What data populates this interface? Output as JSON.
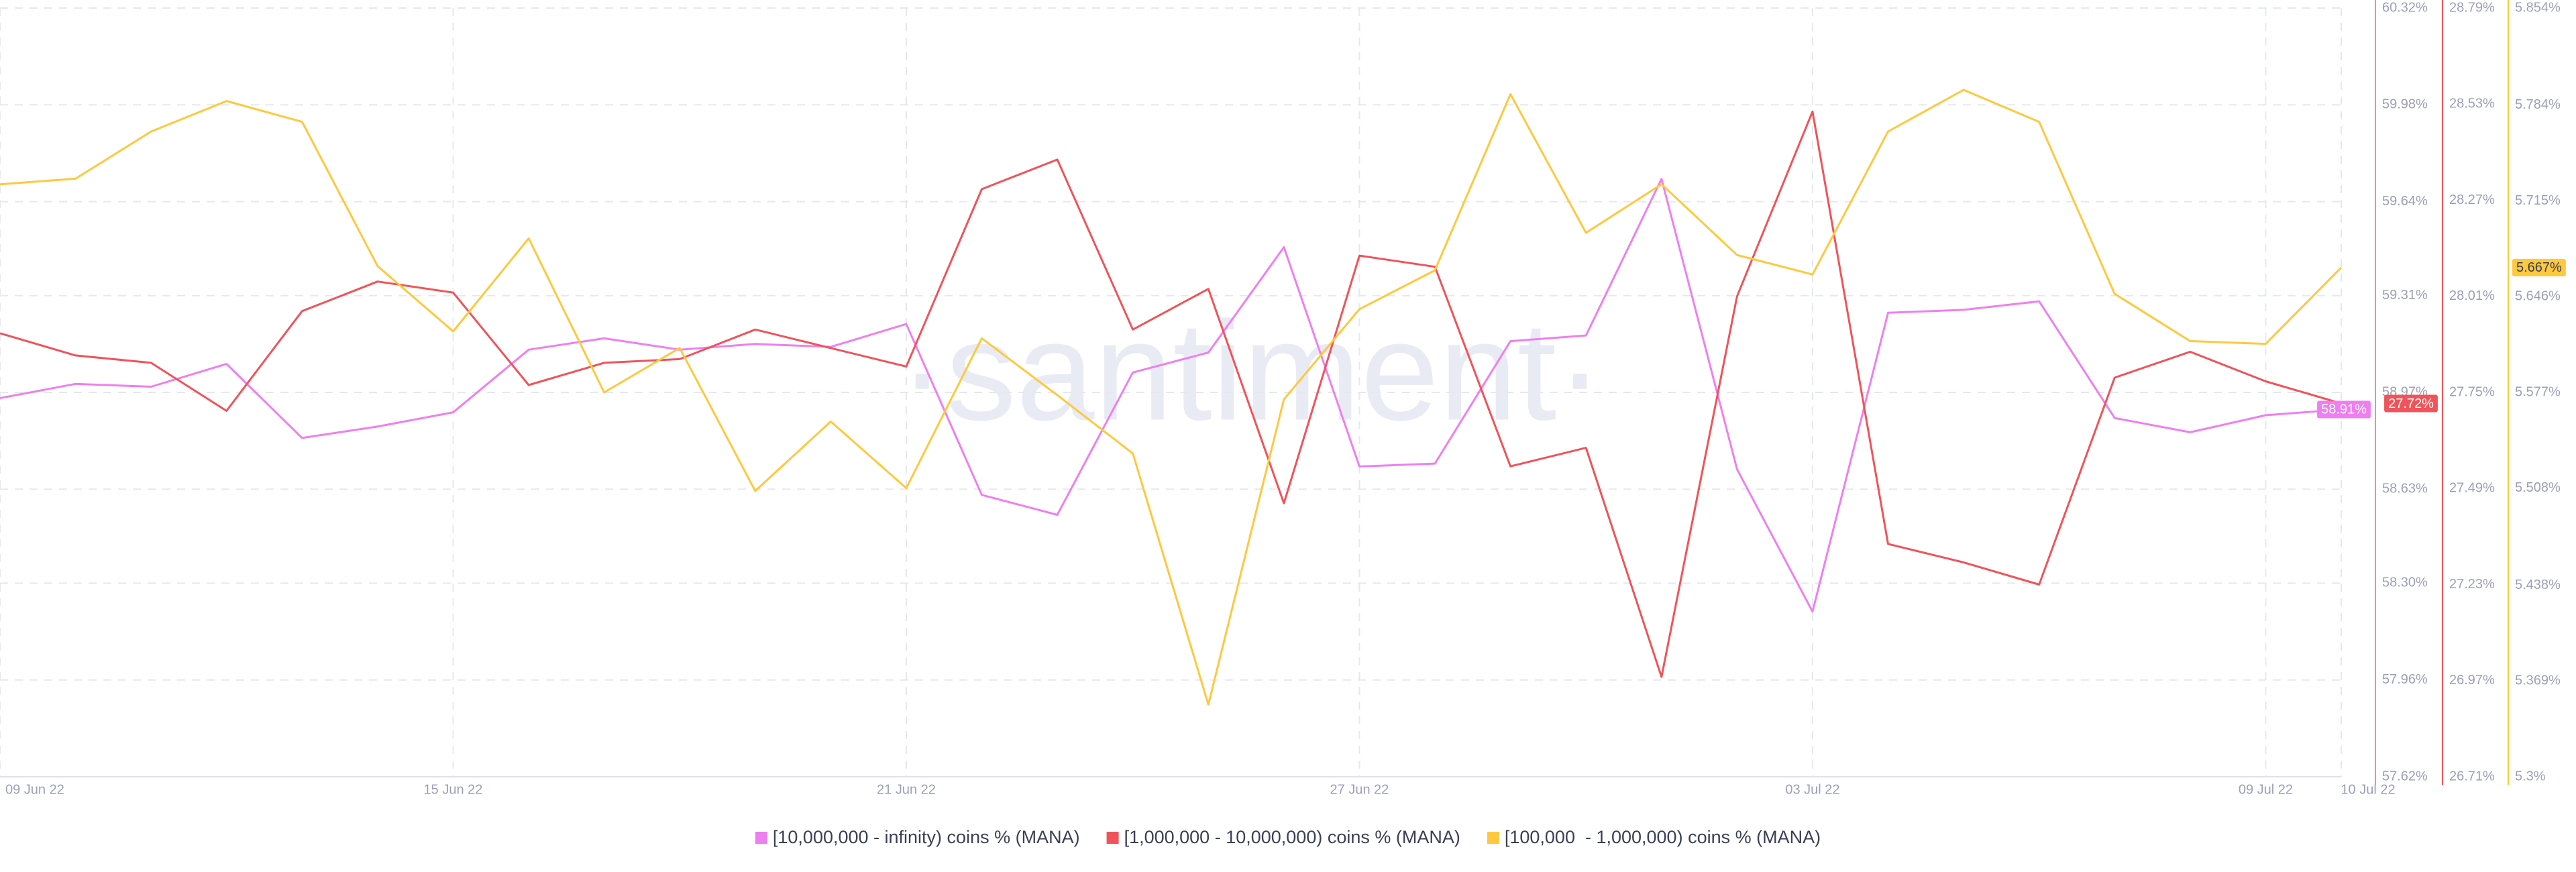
{
  "chart_data": {
    "type": "line",
    "watermark": "·santiment·",
    "categories": [
      "09 Jun 22",
      null,
      null,
      null,
      null,
      null,
      "15 Jun 22",
      null,
      null,
      null,
      null,
      null,
      "21 Jun 22",
      null,
      null,
      null,
      null,
      null,
      "27 Jun 22",
      null,
      null,
      null,
      null,
      null,
      "03 Jul 22",
      null,
      null,
      null,
      null,
      null,
      "09 Jul 22",
      "10 Jul 22"
    ],
    "ylim": [
      57.62,
      60.32
    ],
    "yticks": [
      {
        "value": 57.62,
        "label": "57.62%"
      },
      {
        "value": 57.96,
        "label": "57.96%"
      },
      {
        "value": 58.3,
        "label": "58.30%"
      },
      {
        "value": 58.63,
        "label": "58.63%"
      },
      {
        "value": 58.97,
        "label": "58.97%"
      },
      {
        "value": 59.31,
        "label": "59.31%"
      },
      {
        "value": 59.64,
        "label": "59.64%"
      },
      {
        "value": 59.98,
        "label": "59.98%"
      },
      {
        "value": 60.32,
        "label": "60.32%"
      }
    ],
    "y2lim": [
      26.71,
      28.79
    ],
    "y2ticks": [
      {
        "value": 26.71,
        "label": "26.71%"
      },
      {
        "value": 26.97,
        "label": "26.97%"
      },
      {
        "value": 27.23,
        "label": "27.23%"
      },
      {
        "value": 27.49,
        "label": "27.49%"
      },
      {
        "value": 27.75,
        "label": "27.75%"
      },
      {
        "value": 28.01,
        "label": "28.01%"
      },
      {
        "value": 28.27,
        "label": "28.27%"
      },
      {
        "value": 28.53,
        "label": "28.53%"
      },
      {
        "value": 28.79,
        "label": "28.79%"
      }
    ],
    "y3lim": [
      5.3,
      5.854
    ],
    "y3ticks": [
      {
        "value": 5.3,
        "label": "5.3%"
      },
      {
        "value": 5.369,
        "label": "5.369%"
      },
      {
        "value": 5.438,
        "label": "5.438%"
      },
      {
        "value": 5.508,
        "label": "5.508%"
      },
      {
        "value": 5.577,
        "label": "5.577%"
      },
      {
        "value": 5.646,
        "label": "5.646%"
      },
      {
        "value": 5.715,
        "label": "5.715%"
      },
      {
        "value": 5.784,
        "label": "5.784%"
      },
      {
        "value": 5.854,
        "label": "5.854%"
      }
    ],
    "grid": true,
    "series": [
      {
        "name": "[10,000,000 - infinity) coins % (MANA)",
        "color": "#ee7ff0",
        "axis": "y",
        "last_label": "58.91%",
        "values": [
          58.95,
          59.0,
          58.99,
          59.07,
          58.81,
          58.85,
          58.9,
          59.12,
          59.16,
          59.12,
          59.14,
          59.13,
          59.21,
          58.61,
          58.54,
          59.04,
          59.11,
          59.48,
          58.71,
          58.72,
          59.15,
          59.17,
          59.72,
          58.7,
          58.2,
          59.25,
          59.26,
          59.29,
          58.88,
          58.83,
          58.89,
          58.91
        ]
      },
      {
        "name": "[1,000,000 - 10,000,000) coins % (MANA)",
        "color": "#f0535a",
        "axis": "y2",
        "last_label": "27.72%",
        "values": [
          27.91,
          27.85,
          27.83,
          27.7,
          27.97,
          28.05,
          28.02,
          27.77,
          27.83,
          27.84,
          27.92,
          27.87,
          27.82,
          28.3,
          28.38,
          27.92,
          28.03,
          27.45,
          28.12,
          28.09,
          27.55,
          27.6,
          26.98,
          28.01,
          28.51,
          27.34,
          27.29,
          27.23,
          27.79,
          27.86,
          27.78,
          27.72
        ]
      },
      {
        "name": "[100,000  - 1,000,000) coins % (MANA)",
        "color": "#ffc83d",
        "axis": "y3",
        "last_label": "5.667%",
        "values": [
          5.727,
          5.731,
          5.765,
          5.787,
          5.772,
          5.668,
          5.621,
          5.688,
          5.577,
          5.609,
          5.506,
          5.556,
          5.508,
          5.616,
          5.575,
          5.533,
          5.352,
          5.572,
          5.637,
          5.665,
          5.792,
          5.692,
          5.727,
          5.676,
          5.662,
          5.765,
          5.795,
          5.772,
          5.648,
          5.614,
          5.612,
          5.667
        ]
      }
    ]
  }
}
